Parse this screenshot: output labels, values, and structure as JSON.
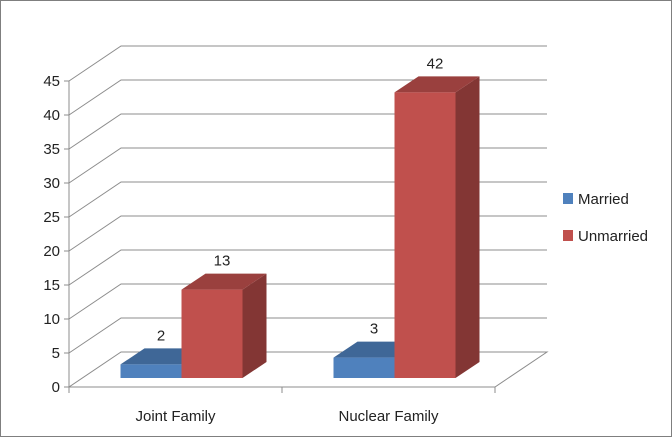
{
  "chart_data": {
    "type": "bar",
    "title": "",
    "xlabel": "",
    "ylabel": "",
    "categories": [
      "Joint Family",
      "Nuclear Family"
    ],
    "series": [
      {
        "name": "Married",
        "values": [
          2,
          3
        ],
        "color": "#4f81bd"
      },
      {
        "name": "Unmarried",
        "values": [
          13,
          42
        ],
        "color": "#c0504d"
      }
    ],
    "ylim": [
      0,
      45
    ],
    "yticks": [
      0,
      5,
      10,
      15,
      20,
      25,
      30,
      35,
      40,
      45
    ],
    "grid": true,
    "legend_position": "right",
    "bar_style": "3d-column"
  }
}
